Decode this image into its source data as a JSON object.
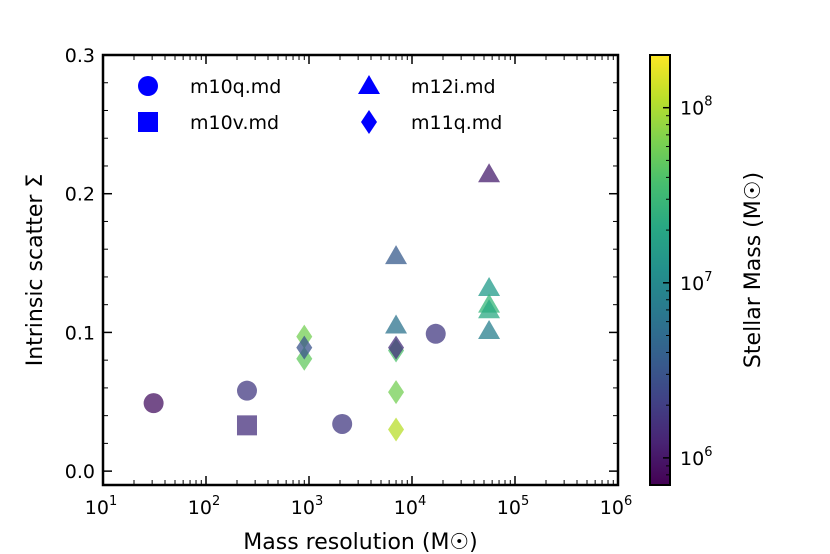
{
  "chart_data": {
    "type": "scatter",
    "title": "",
    "xlabel": "Mass resolution (M☉)",
    "ylabel": "Intrinsic scatter Σ",
    "xscale": "log",
    "xlim": [
      10,
      1000000
    ],
    "ylim": [
      -0.01,
      0.3
    ],
    "grid": false,
    "x_ticks": [
      {
        "value": 10,
        "label": "10",
        "exp": "1"
      },
      {
        "value": 100,
        "label": "10",
        "exp": "2"
      },
      {
        "value": 1000,
        "label": "10",
        "exp": "3"
      },
      {
        "value": 10000,
        "label": "10",
        "exp": "4"
      },
      {
        "value": 100000,
        "label": "10",
        "exp": "5"
      },
      {
        "value": 1000000,
        "label": "10",
        "exp": "6"
      }
    ],
    "y_ticks": [
      {
        "value": 0.0,
        "label": "0.0"
      },
      {
        "value": 0.1,
        "label": "0.1"
      },
      {
        "value": 0.2,
        "label": "0.2"
      },
      {
        "value": 0.3,
        "label": "0.3"
      }
    ],
    "legend": {
      "placement": "top-left",
      "entries": [
        {
          "label": "m10q.md",
          "marker": "circle"
        },
        {
          "label": "m10v.md",
          "marker": "square"
        },
        {
          "label": "m12i.md",
          "marker": "triangle"
        },
        {
          "label": "m11q.md",
          "marker": "diamond"
        }
      ],
      "color": "#0000ff"
    },
    "colorbar": {
      "label": "Stellar Mass (M☉)",
      "scale": "log",
      "range": [
        700000,
        200000000
      ],
      "colormap": "viridis",
      "ticks": [
        {
          "value": 1000000,
          "label": "10",
          "exp": "6"
        },
        {
          "value": 10000000,
          "label": "10",
          "exp": "7"
        },
        {
          "value": 100000000,
          "label": "10",
          "exp": "8"
        }
      ]
    },
    "series": [
      {
        "name": "m10q.md",
        "marker": "circle",
        "points": [
          {
            "x": 31,
            "y": 0.049,
            "c": 900000
          },
          {
            "x": 250,
            "y": 0.058,
            "c": 1800000
          },
          {
            "x": 2100,
            "y": 0.034,
            "c": 1800000
          },
          {
            "x": 17000,
            "y": 0.099,
            "c": 1800000
          }
        ]
      },
      {
        "name": "m10v.md",
        "marker": "square",
        "points": [
          {
            "x": 250,
            "y": 0.033,
            "c": 1500000
          }
        ]
      },
      {
        "name": "m12i.md",
        "marker": "triangle",
        "points": [
          {
            "x": 7000,
            "y": 0.155,
            "c": 3500000
          },
          {
            "x": 7000,
            "y": 0.105,
            "c": 6000000
          },
          {
            "x": 56000,
            "y": 0.214,
            "c": 1100000
          },
          {
            "x": 56000,
            "y": 0.132,
            "c": 15000000
          },
          {
            "x": 56000,
            "y": 0.12,
            "c": 30000000
          },
          {
            "x": 56000,
            "y": 0.116,
            "c": 22000000
          },
          {
            "x": 56000,
            "y": 0.101,
            "c": 8000000
          }
        ]
      },
      {
        "name": "m11q.md",
        "marker": "diamond",
        "points": [
          {
            "x": 900,
            "y": 0.097,
            "c": 60000000
          },
          {
            "x": 900,
            "y": 0.081,
            "c": 50000000
          },
          {
            "x": 900,
            "y": 0.089,
            "c": 3000000
          },
          {
            "x": 7000,
            "y": 0.087,
            "c": 40000000
          },
          {
            "x": 7000,
            "y": 0.057,
            "c": 60000000
          },
          {
            "x": 7000,
            "y": 0.03,
            "c": 110000000
          },
          {
            "x": 7000,
            "y": 0.089,
            "c": 1500000
          }
        ]
      }
    ]
  }
}
